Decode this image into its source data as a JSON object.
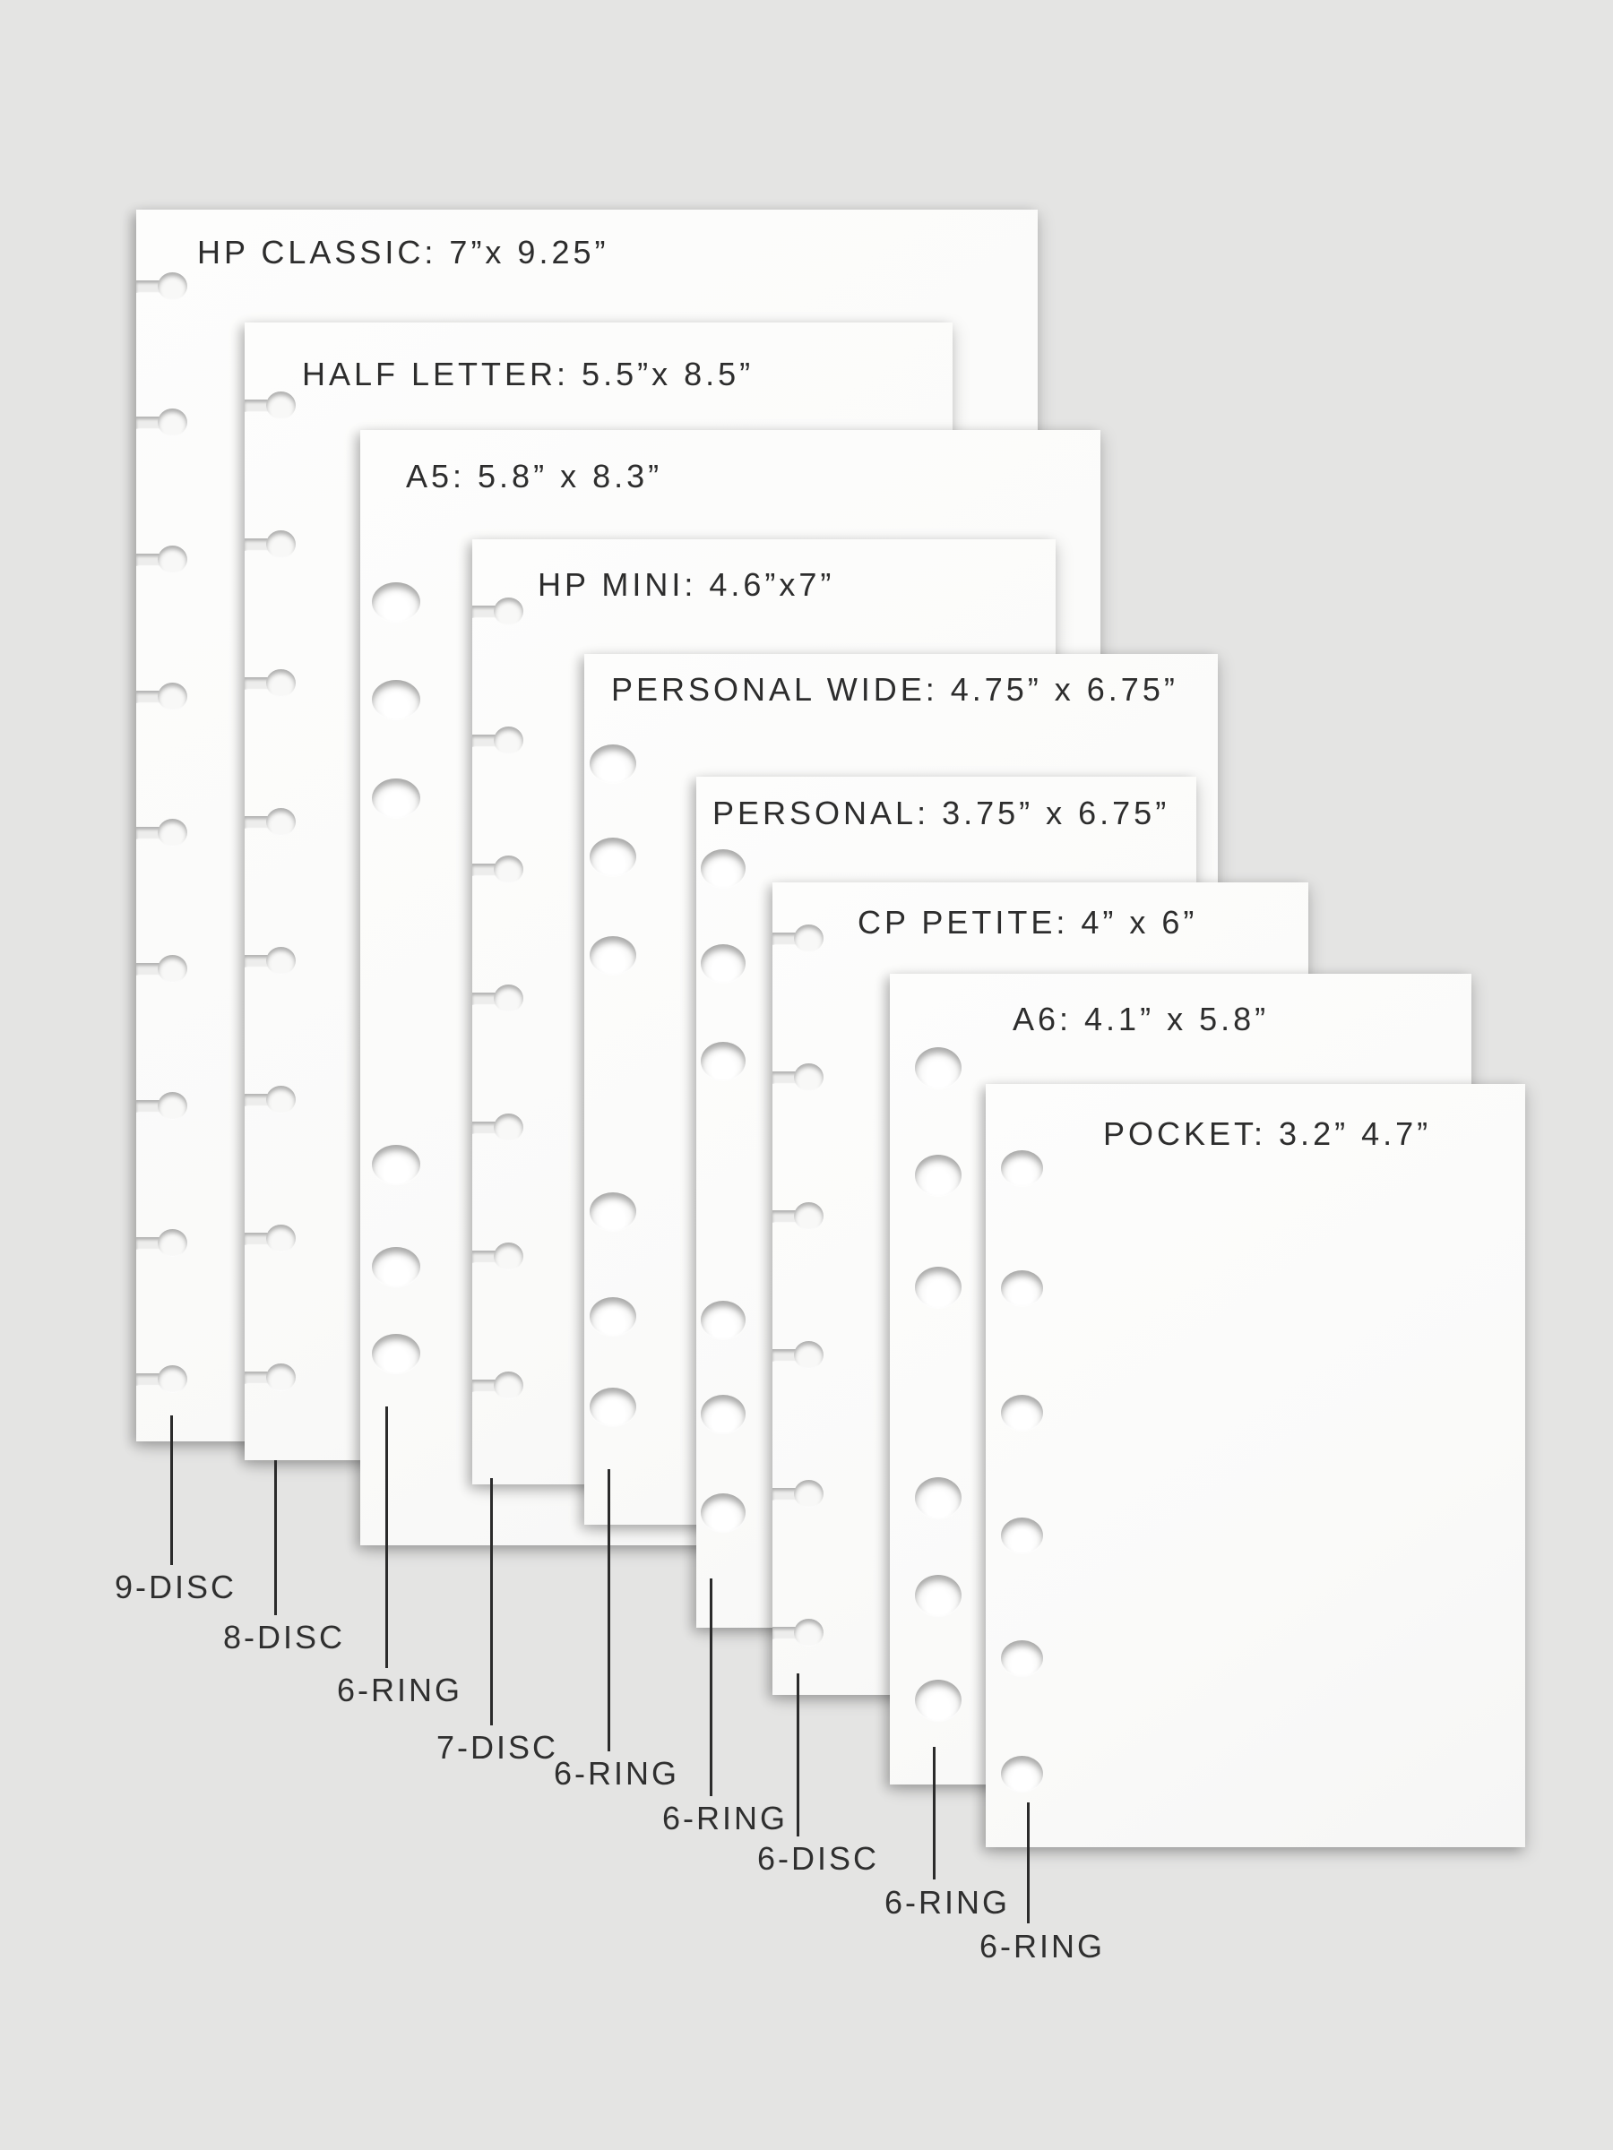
{
  "title": "Planner page size comparison",
  "sheets": [
    {
      "id": "hp-classic",
      "label": "HP CLASSIC: 7”x 9.25”",
      "name": "HP CLASSIC",
      "width_in": "7",
      "height_in": "9.25",
      "binding": "disc",
      "hole_count": 9,
      "footer_label": "9-DISC"
    },
    {
      "id": "half-letter",
      "label": "HALF LETTER: 5.5”x 8.5”",
      "name": "HALF LETTER",
      "width_in": "5.5",
      "height_in": "8.5",
      "binding": "disc",
      "hole_count": 8,
      "footer_label": "8-DISC"
    },
    {
      "id": "a5",
      "label": "A5: 5.8” x 8.3”",
      "name": "A5",
      "width_in": "5.8",
      "height_in": "8.3",
      "binding": "ring",
      "hole_count": 6,
      "footer_label": "6-RING"
    },
    {
      "id": "hp-mini",
      "label": "HP MINI: 4.6”x7”",
      "name": "HP MINI",
      "width_in": "4.6",
      "height_in": "7",
      "binding": "disc",
      "hole_count": 7,
      "footer_label": "7-DISC"
    },
    {
      "id": "personal-wide",
      "label": "PERSONAL WIDE: 4.75” x 6.75”",
      "name": "PERSONAL WIDE",
      "width_in": "4.75",
      "height_in": "6.75",
      "binding": "ring",
      "hole_count": 6,
      "footer_label": "6-RING"
    },
    {
      "id": "personal",
      "label": "PERSONAL: 3.75” x 6.75”",
      "name": "PERSONAL",
      "width_in": "3.75",
      "height_in": "6.75",
      "binding": "ring",
      "hole_count": 6,
      "footer_label": "6-RING"
    },
    {
      "id": "cp-petite",
      "label": "CP PETITE: 4” x 6”",
      "name": "CP PETITE",
      "width_in": "4",
      "height_in": "6",
      "binding": "disc",
      "hole_count": 6,
      "footer_label": "6-DISC"
    },
    {
      "id": "a6",
      "label": "A6: 4.1” x 5.8”",
      "name": "A6",
      "width_in": "4.1",
      "height_in": "5.8",
      "binding": "ring",
      "hole_count": 6,
      "footer_label": "6-RING"
    },
    {
      "id": "pocket",
      "label": "POCKET: 3.2” 4.7”",
      "name": "POCKET",
      "width_in": "3.2",
      "height_in": "4.7",
      "binding": "ring",
      "hole_count": 6,
      "footer_label": "6-RING"
    }
  ],
  "colors": {
    "background": "#e4e4e3",
    "paper": "#fcfcfb",
    "label_text": "#2d2d2d",
    "leader_line": "#2b2b2b"
  }
}
